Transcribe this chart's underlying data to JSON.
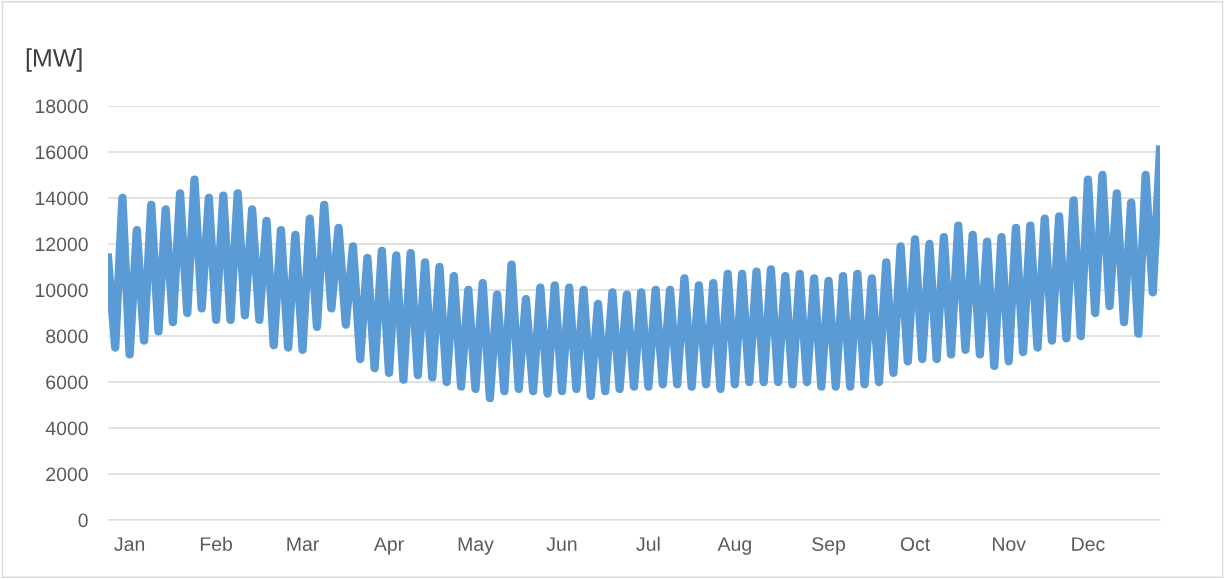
{
  "chart_data": {
    "type": "line",
    "ylabel": "[MW]",
    "categories": [
      null,
      null,
      null,
      "Jan",
      null,
      null,
      null,
      null,
      null,
      null,
      null,
      null,
      null,
      null,
      null,
      "Feb",
      null,
      null,
      null,
      null,
      null,
      null,
      null,
      null,
      null,
      null,
      null,
      "Mar",
      null,
      null,
      null,
      null,
      null,
      null,
      null,
      null,
      null,
      null,
      null,
      "Apr",
      null,
      null,
      null,
      null,
      null,
      null,
      null,
      null,
      null,
      null,
      null,
      "May",
      null,
      null,
      null,
      null,
      null,
      null,
      null,
      null,
      null,
      null,
      null,
      "Jun",
      null,
      null,
      null,
      null,
      null,
      null,
      null,
      null,
      null,
      null,
      null,
      "Jul",
      null,
      null,
      null,
      null,
      null,
      null,
      null,
      null,
      null,
      null,
      null,
      "Aug",
      null,
      null,
      null,
      null,
      null,
      null,
      null,
      null,
      null,
      null,
      null,
      null,
      "Sep",
      null,
      null,
      null,
      null,
      null,
      null,
      null,
      null,
      null,
      null,
      null,
      "Oct",
      null,
      null,
      null,
      null,
      null,
      null,
      null,
      null,
      null,
      null,
      null,
      null,
      "Nov",
      null,
      null,
      null,
      null,
      null,
      null,
      null,
      null,
      null,
      null,
      "Dec",
      null,
      null,
      null,
      null,
      null,
      null,
      null,
      null,
      null,
      null
    ],
    "series": [
      {
        "color": "#5b9bd5",
        "values": [
          11400,
          7500,
          14000,
          7200,
          12600,
          7800,
          13700,
          8200,
          13500,
          8600,
          14200,
          9000,
          14800,
          9200,
          14000,
          8700,
          14100,
          8700,
          14200,
          8900,
          13500,
          8700,
          13000,
          7600,
          12600,
          7500,
          12400,
          7400,
          13100,
          8400,
          13700,
          9200,
          12700,
          8500,
          11900,
          7000,
          11400,
          6600,
          11700,
          6400,
          11500,
          6100,
          11600,
          6300,
          11200,
          6200,
          11000,
          6000,
          10600,
          5800,
          10000,
          5700,
          10300,
          5300,
          9800,
          5600,
          11100,
          5700,
          9600,
          5600,
          10100,
          5500,
          10200,
          5600,
          10100,
          5700,
          10000,
          5400,
          9400,
          5600,
          9900,
          5700,
          9800,
          5800,
          9900,
          5800,
          10000,
          5900,
          10000,
          5900,
          10500,
          5800,
          10200,
          5900,
          10300,
          5700,
          10700,
          5900,
          10700,
          6000,
          10800,
          6000,
          10900,
          6000,
          10600,
          5900,
          10700,
          6000,
          10500,
          5800,
          10400,
          5800,
          10600,
          5800,
          10700,
          5900,
          10500,
          6000,
          11200,
          6400,
          11900,
          6900,
          12200,
          7000,
          12000,
          7000,
          12300,
          7200,
          12800,
          7400,
          12400,
          7200,
          12100,
          6700,
          12300,
          6900,
          12700,
          7300,
          12800,
          7500,
          13100,
          7800,
          13200,
          7900,
          13900,
          8000,
          14800,
          9000,
          15000,
          9300,
          14200,
          8600,
          13800,
          8100,
          15000,
          9900,
          16100
        ]
      }
    ],
    "ylim": [
      0,
      18000
    ],
    "yticks": [
      0,
      2000,
      4000,
      6000,
      8000,
      10000,
      12000,
      14000,
      16000,
      18000
    ],
    "grid": "y",
    "legend": false,
    "marker": "none",
    "line_style": "solid"
  }
}
